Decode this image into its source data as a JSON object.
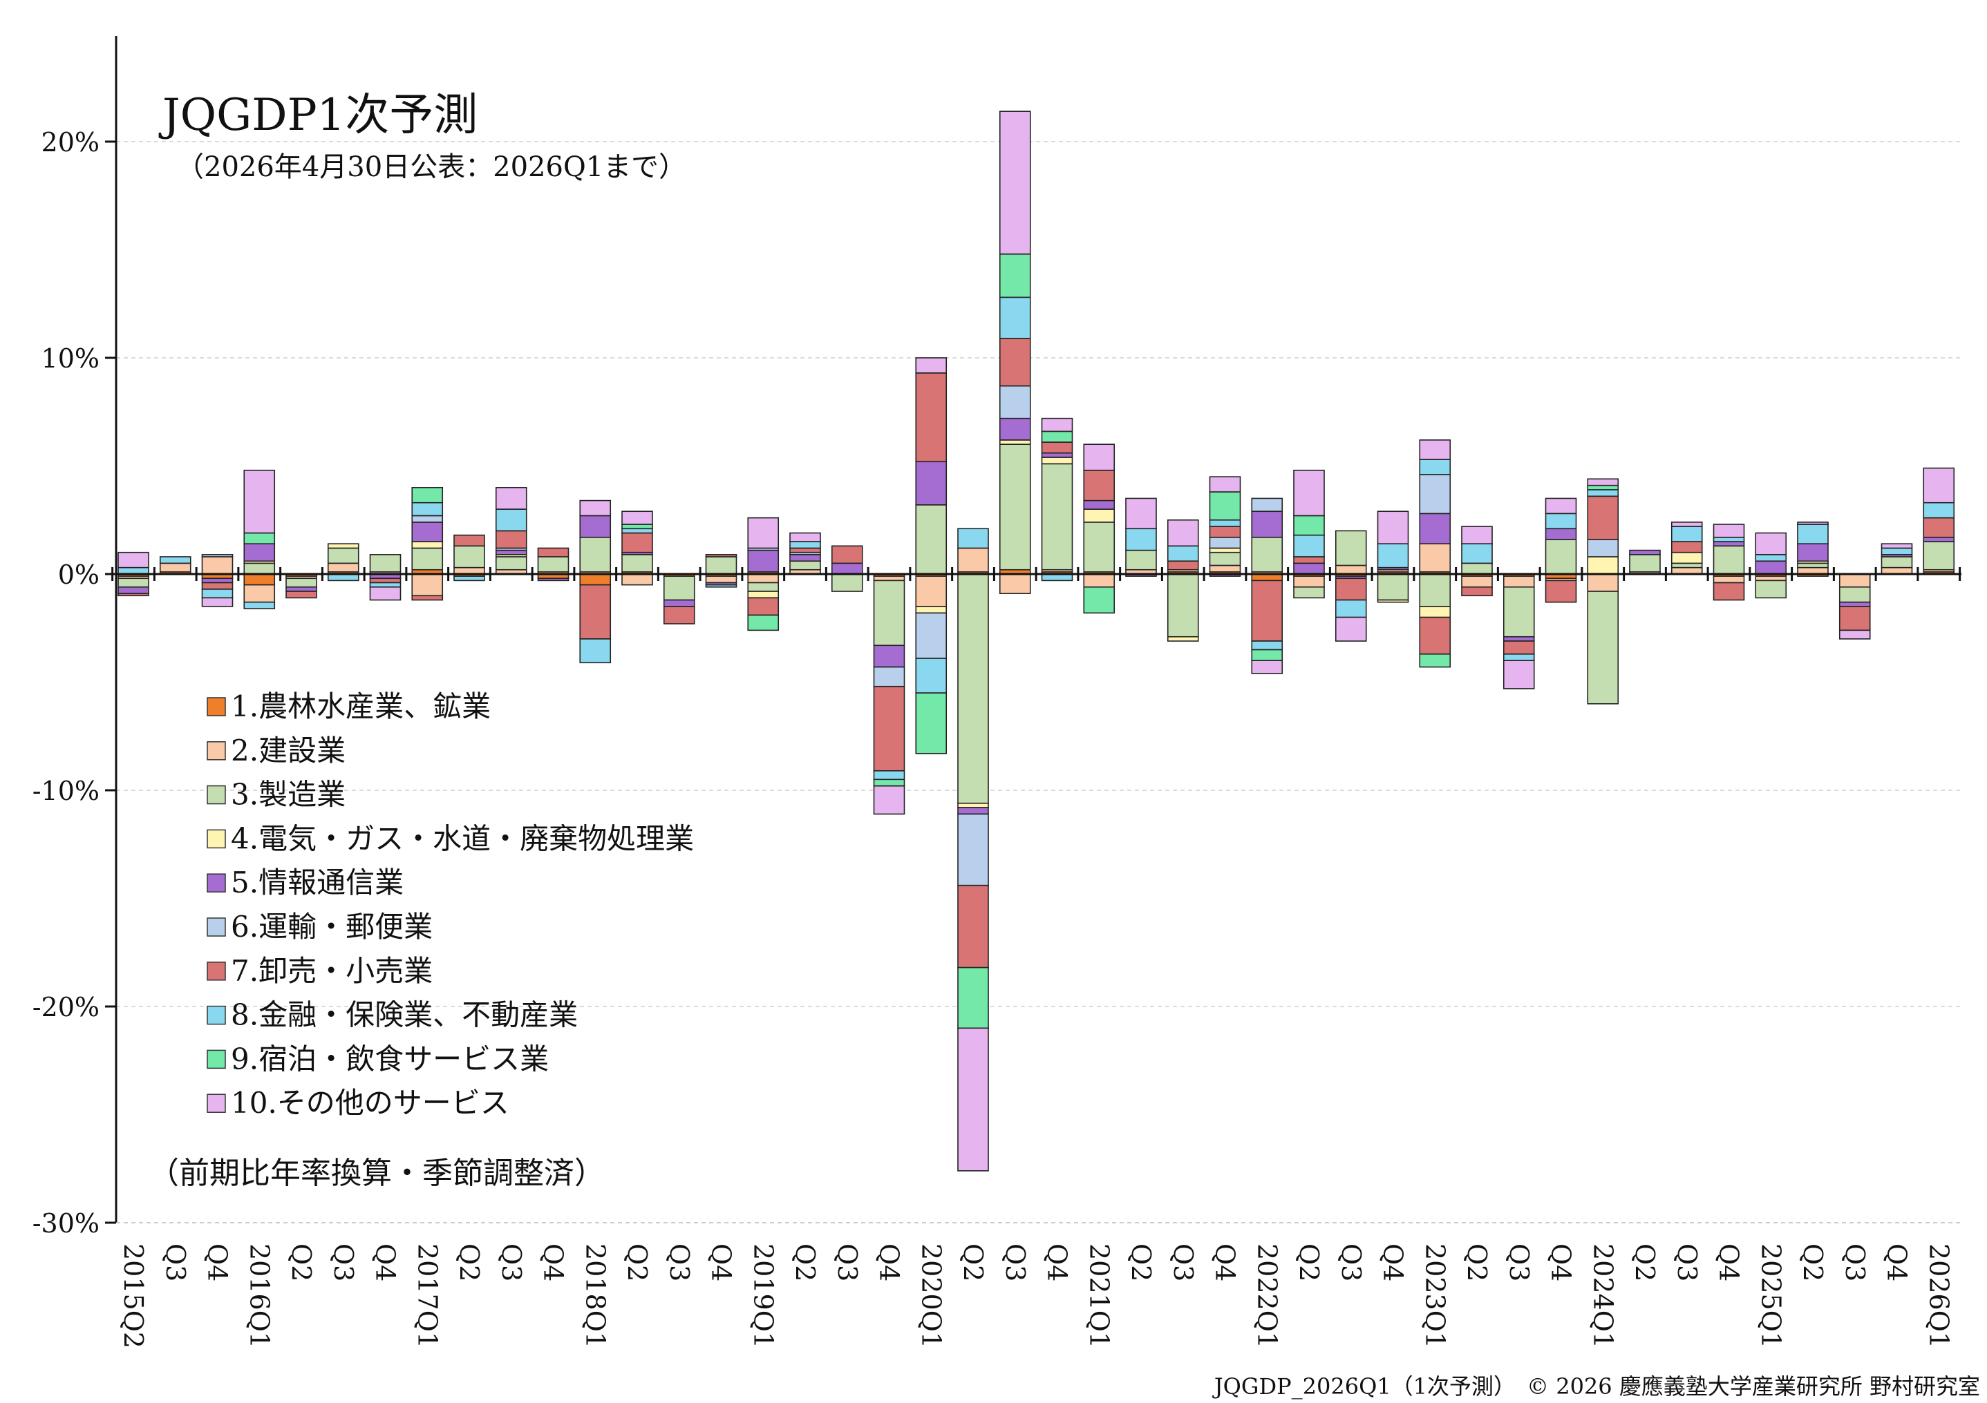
{
  "chart_data": {
    "type": "bar",
    "stacked": true,
    "title": "JQGDP1次予測",
    "subtitle": "（2026年4月30日公表：2026Q1まで）",
    "note": "（前期比年率換算・季節調整済）",
    "footer": "JQGDP_2026Q1（1次予測）　© 2026 慶應義塾大学産業研究所 野村研究室",
    "ylim": [
      -30,
      25
    ],
    "yticks": [
      20,
      10,
      0,
      -10,
      -20,
      -30
    ],
    "ytick_labels": [
      "20%",
      "10%",
      "0%",
      "-10%",
      "-20%",
      "-30%"
    ],
    "grid": true,
    "legend_position": "left",
    "categories": [
      "2015Q2",
      "Q3",
      "Q4",
      "2016Q1",
      "Q2",
      "Q3",
      "Q4",
      "2017Q1",
      "Q2",
      "Q3",
      "Q4",
      "2018Q1",
      "Q2",
      "Q3",
      "Q4",
      "2019Q1",
      "Q2",
      "Q3",
      "Q4",
      "2020Q1",
      "Q2",
      "Q3",
      "Q4",
      "2021Q1",
      "Q2",
      "Q3",
      "Q4",
      "2022Q1",
      "Q2",
      "Q3",
      "Q4",
      "2023Q1",
      "Q2",
      "Q3",
      "Q4",
      "2024Q1",
      "Q2",
      "Q3",
      "Q4",
      "2025Q1",
      "Q2",
      "Q3",
      "Q4",
      "2026Q1"
    ],
    "series": [
      {
        "name": "1.農林水産業、鉱業",
        "color": "#f07f2c",
        "values": [
          -0.1,
          0.1,
          -0.2,
          -0.5,
          -0.1,
          0.1,
          0.0,
          0.2,
          -0.1,
          0.0,
          -0.2,
          -0.5,
          0.1,
          -0.1,
          -0.1,
          0.1,
          0.0,
          0.0,
          -0.1,
          -0.1,
          0.1,
          0.2,
          0.1,
          0.1,
          0.0,
          0.1,
          0.1,
          -0.3,
          -0.1,
          -0.1,
          0.1,
          0.1,
          -0.1,
          -0.1,
          -0.2,
          0.0,
          0.0,
          0.0,
          -0.1,
          -0.1,
          -0.1,
          0.0,
          0.0,
          0.1
        ]
      },
      {
        "name": "2.建設業",
        "color": "#f9c9a8",
        "values": [
          -0.1,
          0.4,
          0.8,
          -0.8,
          -0.1,
          0.4,
          0.1,
          -1.0,
          0.3,
          0.2,
          0.1,
          0.1,
          -0.5,
          0.0,
          -0.3,
          -0.4,
          0.2,
          0.0,
          -0.2,
          -1.4,
          1.1,
          -0.9,
          0.1,
          -0.6,
          0.2,
          0.1,
          0.3,
          0.1,
          -0.5,
          0.4,
          0.1,
          1.3,
          -0.5,
          -0.5,
          -0.1,
          -0.8,
          0.1,
          0.3,
          -0.3,
          -0.2,
          0.3,
          -0.6,
          0.3,
          0.1
        ]
      },
      {
        "name": "3.製造業",
        "color": "#c4ddb1",
        "values": [
          -0.4,
          0.0,
          0.0,
          0.5,
          -0.4,
          0.7,
          0.8,
          1.0,
          1.0,
          0.6,
          0.7,
          1.6,
          0.8,
          -1.1,
          0.8,
          -0.4,
          0.4,
          -0.8,
          -3.0,
          3.2,
          -10.6,
          5.8,
          4.9,
          2.3,
          0.9,
          -2.9,
          0.6,
          1.6,
          -0.5,
          1.6,
          -1.2,
          -1.5,
          0.5,
          -2.3,
          1.6,
          -5.2,
          0.8,
          0.2,
          1.3,
          -0.8,
          0.2,
          -0.7,
          0.5,
          1.3
        ]
      },
      {
        "name": "4.電気・ガス・水道・廃棄物処理業",
        "color": "#fff4b2",
        "values": [
          0.0,
          0.0,
          0.0,
          0.1,
          0.0,
          0.2,
          0.0,
          0.3,
          0.0,
          0.1,
          0.0,
          0.0,
          0.0,
          0.0,
          0.0,
          -0.3,
          0.0,
          0.0,
          0.0,
          -0.3,
          -0.2,
          0.2,
          0.3,
          0.6,
          0.0,
          -0.2,
          0.2,
          0.0,
          0.0,
          0.0,
          -0.1,
          -0.5,
          0.0,
          0.0,
          0.0,
          0.8,
          0.0,
          0.5,
          0.0,
          0.0,
          0.1,
          0.0,
          0.0,
          0.0
        ]
      },
      {
        "name": "5.情報通信業",
        "color": "#a56dd1",
        "values": [
          -0.3,
          0.0,
          -0.2,
          0.8,
          -0.2,
          0.0,
          -0.2,
          0.9,
          0.0,
          0.2,
          -0.1,
          1.0,
          0.1,
          -0.3,
          -0.1,
          1.0,
          0.3,
          0.5,
          -1.0,
          2.0,
          -0.3,
          1.0,
          0.2,
          0.4,
          -0.1,
          0.0,
          -0.1,
          1.2,
          0.5,
          -0.1,
          0.1,
          1.4,
          0.0,
          -0.2,
          0.5,
          0.0,
          0.2,
          0.0,
          0.2,
          0.6,
          0.8,
          -0.2,
          0.1,
          0.2
        ]
      },
      {
        "name": "6.運輸・郵便業",
        "color": "#b8d0ec",
        "values": [
          0.0,
          0.0,
          0.1,
          0.0,
          0.0,
          0.0,
          0.0,
          0.3,
          0.0,
          0.1,
          0.0,
          0.0,
          0.0,
          0.0,
          0.0,
          0.1,
          0.1,
          0.0,
          -0.9,
          -2.1,
          -3.3,
          1.5,
          0.0,
          0.0,
          0.0,
          0.0,
          0.5,
          0.6,
          0.0,
          0.0,
          0.0,
          1.8,
          0.0,
          0.0,
          0.0,
          0.8,
          0.0,
          0.0,
          0.0,
          0.0,
          0.0,
          0.0,
          0.0,
          0.0
        ]
      },
      {
        "name": "7.卸売・小売業",
        "color": "#d97474",
        "values": [
          -0.1,
          0.0,
          -0.3,
          0.0,
          -0.3,
          0.0,
          -0.2,
          -0.2,
          0.5,
          0.8,
          0.4,
          -2.5,
          0.9,
          -0.8,
          0.1,
          -0.8,
          0.2,
          0.8,
          -3.9,
          4.1,
          -3.8,
          2.2,
          0.5,
          1.4,
          0.0,
          0.4,
          0.5,
          -2.8,
          0.3,
          -1.0,
          0.0,
          -1.7,
          -0.4,
          -0.6,
          -1.0,
          2.0,
          0.0,
          0.5,
          -0.8,
          0.0,
          0.0,
          -1.1,
          0.0,
          0.9
        ]
      },
      {
        "name": "8.金融・保険業、不動産業",
        "color": "#8ad8ef",
        "values": [
          0.3,
          0.3,
          -0.4,
          -0.3,
          0.0,
          -0.3,
          -0.2,
          0.6,
          -0.2,
          1.0,
          0.0,
          -1.1,
          0.2,
          0.0,
          -0.1,
          0.0,
          0.3,
          0.0,
          -0.4,
          -1.6,
          0.9,
          1.9,
          -0.3,
          0.0,
          1.0,
          0.7,
          0.3,
          -0.4,
          1.0,
          -0.8,
          1.1,
          0.7,
          0.9,
          -0.3,
          0.7,
          0.3,
          0.0,
          0.7,
          0.2,
          0.3,
          0.9,
          0.0,
          0.3,
          0.7
        ]
      },
      {
        "name": "9.宿泊・飲食サービス業",
        "color": "#74e8a9",
        "values": [
          0.0,
          0.0,
          0.0,
          0.5,
          0.0,
          0.0,
          0.0,
          0.7,
          0.0,
          0.0,
          0.0,
          0.0,
          0.2,
          0.0,
          0.0,
          -0.7,
          0.0,
          0.0,
          -0.3,
          -2.8,
          -2.8,
          2.0,
          0.5,
          -1.2,
          0.0,
          0.0,
          1.3,
          -0.5,
          0.9,
          0.0,
          0.0,
          -0.6,
          0.0,
          0.0,
          0.0,
          0.2,
          0.0,
          0.0,
          0.0,
          0.0,
          0.0,
          0.0,
          0.0,
          0.0
        ]
      },
      {
        "name": "10.その他のサービス",
        "color": "#e6b5ef",
        "values": [
          0.7,
          0.0,
          -0.4,
          2.9,
          0.0,
          0.0,
          -0.6,
          0.0,
          0.0,
          1.0,
          0.0,
          0.7,
          0.6,
          0.0,
          0.0,
          1.4,
          0.4,
          0.0,
          -1.3,
          0.7,
          -6.6,
          6.6,
          0.6,
          1.2,
          1.4,
          1.2,
          0.7,
          -0.6,
          2.1,
          -1.1,
          1.5,
          0.9,
          0.8,
          -1.3,
          0.7,
          0.3,
          0.0,
          0.2,
          0.6,
          1.0,
          0.1,
          -0.4,
          0.2,
          1.6
        ]
      }
    ]
  }
}
